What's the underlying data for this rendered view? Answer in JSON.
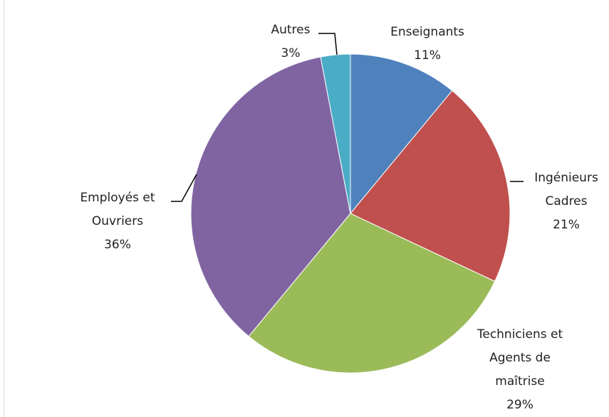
{
  "chart_data": {
    "type": "pie",
    "categories": [
      "Enseignants",
      "Ingénieurs Cadres",
      "Techniciens et Agents de maîtrise",
      "Employés et Ouvriers",
      "Autres"
    ],
    "values": [
      11,
      21,
      29,
      36,
      3
    ],
    "value_labels": [
      "11%",
      "21%",
      "29%",
      "36%",
      "3%"
    ],
    "colors": [
      "#4f81bd",
      "#c0504d",
      "#9bbb59",
      "#8064a2",
      "#4bacc6"
    ]
  }
}
